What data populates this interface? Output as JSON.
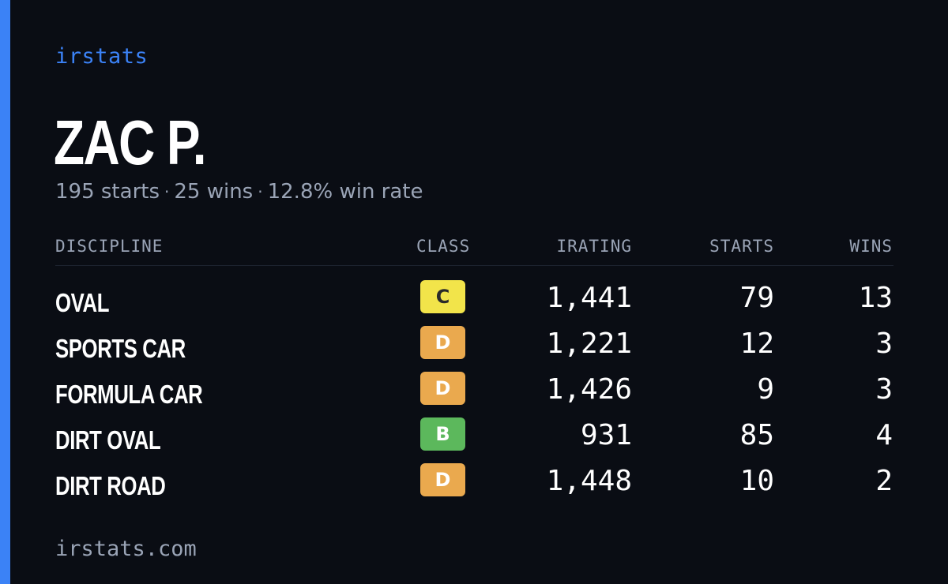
{
  "brand": "irstats",
  "driver": {
    "name": "ZAC P.",
    "starts_text": "195 starts",
    "wins_text": "25 wins",
    "winrate_text": "12.8% win rate",
    "separator": "·"
  },
  "table": {
    "headers": {
      "discipline": "DISCIPLINE",
      "class": "CLASS",
      "irating": "IRATING",
      "starts": "STARTS",
      "wins": "WINS"
    },
    "rows": [
      {
        "discipline": "OVAL",
        "class": "C",
        "class_color": "#f2e44a",
        "class_text_color": "#2a2a2a",
        "irating": "1,441",
        "starts": "79",
        "wins": "13"
      },
      {
        "discipline": "SPORTS CAR",
        "class": "D",
        "class_color": "#eaa94e",
        "class_text_color": "#ffffff",
        "irating": "1,221",
        "starts": "12",
        "wins": "3"
      },
      {
        "discipline": "FORMULA CAR",
        "class": "D",
        "class_color": "#eaa94e",
        "class_text_color": "#ffffff",
        "irating": "1,426",
        "starts": "9",
        "wins": "3"
      },
      {
        "discipline": "DIRT OVAL",
        "class": "B",
        "class_color": "#5cb85c",
        "class_text_color": "#ffffff",
        "irating": "931",
        "starts": "85",
        "wins": "4"
      },
      {
        "discipline": "DIRT ROAD",
        "class": "D",
        "class_color": "#eaa94e",
        "class_text_color": "#ffffff",
        "irating": "1,448",
        "starts": "10",
        "wins": "2"
      }
    ]
  },
  "footer": "irstats.com",
  "colors": {
    "background": "#0a0d14",
    "accent": "#3b82f6",
    "muted_text": "#9aa4b6"
  }
}
